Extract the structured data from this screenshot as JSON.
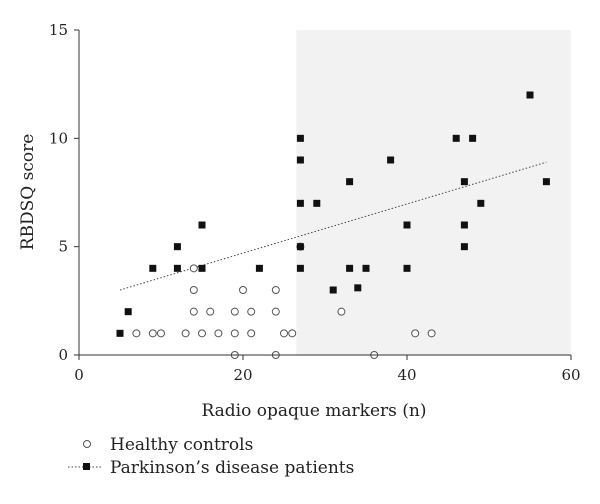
{
  "chart_data": {
    "type": "scatter",
    "xlabel": "Radio opaque markers (n)",
    "ylabel": "RBDSQ score",
    "xlim": [
      0,
      60
    ],
    "ylim": [
      0,
      15
    ],
    "xticks": [
      0,
      20,
      40,
      60
    ],
    "yticks": [
      0,
      5,
      10,
      15
    ],
    "grid": false,
    "legend_position": "bottom-left",
    "shaded_region": {
      "x_from": 26.5,
      "x_to": 60,
      "color": "#f2f2f2"
    },
    "series": [
      {
        "name": "Healthy controls",
        "marker": "open-circle",
        "color": "#555555",
        "points": [
          [
            7,
            1
          ],
          [
            9,
            1
          ],
          [
            10,
            1
          ],
          [
            13,
            1
          ],
          [
            15,
            1
          ],
          [
            17,
            1
          ],
          [
            19,
            1
          ],
          [
            21,
            1
          ],
          [
            25,
            1
          ],
          [
            26,
            1
          ],
          [
            14,
            2
          ],
          [
            16,
            2
          ],
          [
            19,
            2
          ],
          [
            21,
            2
          ],
          [
            24,
            2
          ],
          [
            32,
            2
          ],
          [
            14,
            3
          ],
          [
            20,
            3
          ],
          [
            24,
            3
          ],
          [
            14,
            4
          ],
          [
            27,
            5
          ],
          [
            19,
            0
          ],
          [
            24,
            0
          ],
          [
            36,
            0
          ],
          [
            41,
            1
          ],
          [
            43,
            1
          ]
        ]
      },
      {
        "name": "Parkinson’s disease patients",
        "marker": "filled-square",
        "color": "#111111",
        "points": [
          [
            5,
            1
          ],
          [
            6,
            2
          ],
          [
            9,
            4
          ],
          [
            12,
            5
          ],
          [
            12,
            4
          ],
          [
            15,
            6
          ],
          [
            15,
            4
          ],
          [
            22,
            4
          ],
          [
            27,
            10
          ],
          [
            27,
            9
          ],
          [
            27,
            7
          ],
          [
            27,
            5
          ],
          [
            27,
            4
          ],
          [
            29,
            7
          ],
          [
            31,
            3
          ],
          [
            33,
            8
          ],
          [
            33,
            4
          ],
          [
            34,
            3.1
          ],
          [
            35,
            4
          ],
          [
            38,
            9
          ],
          [
            40,
            6
          ],
          [
            40,
            4
          ],
          [
            46,
            10
          ],
          [
            47,
            8
          ],
          [
            47,
            6
          ],
          [
            47,
            5
          ],
          [
            48,
            10
          ],
          [
            49,
            7
          ],
          [
            55,
            12
          ],
          [
            57,
            8
          ]
        ]
      }
    ],
    "trendline": {
      "series": "Parkinson’s disease patients",
      "style": "dotted",
      "x": [
        5,
        57
      ],
      "y": [
        3.0,
        8.9
      ]
    }
  }
}
